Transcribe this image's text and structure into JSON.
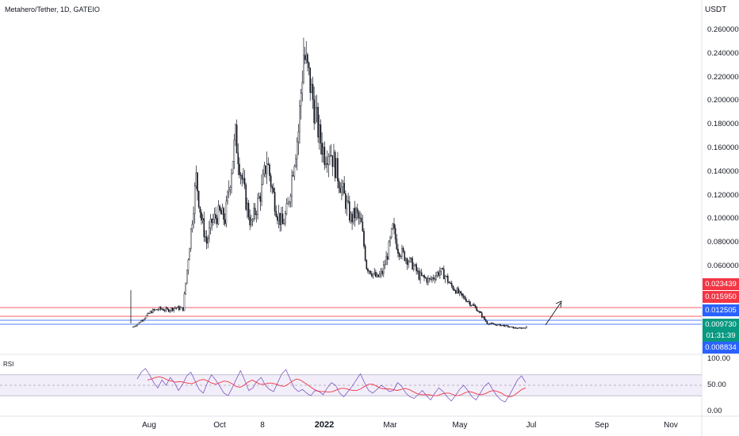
{
  "header": {
    "title": "Metahero/Tether, 1D, GATEIO",
    "currency": "USDT"
  },
  "colors": {
    "up": "#131722",
    "down": "#131722",
    "red_line": "#f23645",
    "blue_line": "#2962ff",
    "green_tag": "#089981",
    "rsi_line": "#7e57c2",
    "rsi_ma": "#f23645",
    "rsi_band": "#ede7f6"
  },
  "chart_data": {
    "type": "candlestick",
    "title": "Metahero/Tether, 1D, GATEIO",
    "y_unit": "USDT",
    "ylim": [
      0.0,
      0.268
    ],
    "y_ticks": [
      "0.260000",
      "0.240000",
      "0.220000",
      "0.200000",
      "0.180000",
      "0.160000",
      "0.140000",
      "0.120000",
      "0.100000",
      "0.080000",
      "0.060000"
    ],
    "x_ticks": [
      {
        "label": "Aug",
        "bold": false
      },
      {
        "label": "Oct",
        "bold": false
      },
      {
        "label": "8",
        "bold": false
      },
      {
        "label": "2022",
        "bold": true
      },
      {
        "label": "Mar",
        "bold": false
      },
      {
        "label": "May",
        "bold": false
      },
      {
        "label": "Jul",
        "bold": false
      },
      {
        "label": "Sep",
        "bold": false
      },
      {
        "label": "Nov",
        "bold": false
      }
    ],
    "series_close_points": [
      [
        0,
        0.0088
      ],
      [
        3,
        0.011
      ],
      [
        8,
        0.016
      ],
      [
        14,
        0.022
      ],
      [
        20,
        0.024
      ],
      [
        26,
        0.023
      ],
      [
        32,
        0.025
      ],
      [
        38,
        0.024
      ],
      [
        44,
        0.09
      ],
      [
        48,
        0.135
      ],
      [
        52,
        0.1
      ],
      [
        56,
        0.08
      ],
      [
        60,
        0.098
      ],
      [
        66,
        0.105
      ],
      [
        70,
        0.1
      ],
      [
        74,
        0.135
      ],
      [
        78,
        0.17
      ],
      [
        82,
        0.14
      ],
      [
        86,
        0.115
      ],
      [
        90,
        0.095
      ],
      [
        94,
        0.11
      ],
      [
        98,
        0.125
      ],
      [
        102,
        0.15
      ],
      [
        106,
        0.125
      ],
      [
        110,
        0.105
      ],
      [
        114,
        0.095
      ],
      [
        118,
        0.11
      ],
      [
        122,
        0.145
      ],
      [
        126,
        0.175
      ],
      [
        130,
        0.24
      ],
      [
        134,
        0.22
      ],
      [
        138,
        0.195
      ],
      [
        142,
        0.17
      ],
      [
        146,
        0.155
      ],
      [
        150,
        0.16
      ],
      [
        154,
        0.145
      ],
      [
        158,
        0.13
      ],
      [
        162,
        0.115
      ],
      [
        166,
        0.1
      ],
      [
        170,
        0.105
      ],
      [
        174,
        0.095
      ],
      [
        178,
        0.06
      ],
      [
        182,
        0.055
      ],
      [
        186,
        0.05
      ],
      [
        190,
        0.055
      ],
      [
        194,
        0.07
      ],
      [
        198,
        0.092
      ],
      [
        202,
        0.075
      ],
      [
        206,
        0.07
      ],
      [
        210,
        0.065
      ],
      [
        214,
        0.06
      ],
      [
        218,
        0.052
      ],
      [
        222,
        0.05
      ],
      [
        226,
        0.048
      ],
      [
        230,
        0.052
      ],
      [
        234,
        0.056
      ],
      [
        238,
        0.052
      ],
      [
        242,
        0.044
      ],
      [
        246,
        0.04
      ],
      [
        250,
        0.035
      ],
      [
        254,
        0.032
      ],
      [
        258,
        0.028
      ],
      [
        262,
        0.024
      ],
      [
        266,
        0.018
      ],
      [
        270,
        0.012
      ],
      [
        274,
        0.011
      ],
      [
        278,
        0.0105
      ],
      [
        282,
        0.01
      ],
      [
        286,
        0.009
      ],
      [
        290,
        0.008
      ],
      [
        294,
        0.0076
      ],
      [
        298,
        0.008
      ],
      [
        300,
        0.0085
      ]
    ],
    "horizontal_lines": [
      {
        "price": 0.023439,
        "label": "0.023439",
        "color": "#f23645"
      },
      {
        "price": 0.01595,
        "label": "0.015950",
        "color": "#f23645"
      },
      {
        "price": 0.012505,
        "label": "0.012505",
        "color": "#2962ff"
      },
      {
        "price": 0.008834,
        "label": "0.008834",
        "color": "#2962ff"
      }
    ],
    "last_price": {
      "label": "0.009730",
      "countdown": "01:31:39"
    },
    "rsi": {
      "label": "RSI",
      "ticks": [
        "100.00",
        "50.00",
        "0.00"
      ],
      "upper_band": 70,
      "lower_band": 30,
      "values": [
        62,
        75,
        82,
        70,
        55,
        45,
        60,
        50,
        65,
        55,
        40,
        52,
        68,
        75,
        58,
        42,
        35,
        55,
        70,
        60,
        48,
        35,
        30,
        45,
        62,
        78,
        60,
        40,
        45,
        58,
        65,
        50,
        42,
        38,
        55,
        72,
        80,
        62,
        45,
        38,
        42,
        35,
        30,
        40,
        38,
        32,
        45,
        55,
        50,
        35,
        28,
        38,
        48,
        60,
        72,
        55,
        40,
        35,
        42,
        50,
        45,
        38,
        40,
        55,
        48,
        35,
        28,
        25,
        32,
        40,
        30,
        22,
        35,
        45,
        38,
        28,
        20,
        30,
        42,
        50,
        40,
        28,
        22,
        35,
        48,
        55,
        42,
        30,
        22,
        18,
        30,
        45,
        60,
        68,
        55
      ],
      "ma_values": [
        60,
        62,
        65,
        66,
        64,
        60,
        58,
        56,
        57,
        56,
        54,
        53,
        56,
        60,
        61,
        58,
        54,
        52,
        55,
        58,
        57,
        53,
        48,
        46,
        50,
        56,
        60,
        56,
        52,
        52,
        54,
        54,
        52,
        49,
        48,
        52,
        58,
        62,
        60,
        55,
        50,
        44,
        40,
        38,
        38,
        37,
        38,
        41,
        44,
        44,
        42,
        40,
        40,
        43,
        48,
        52,
        52,
        48,
        44,
        43,
        43,
        42,
        40,
        42,
        44,
        42,
        38,
        34,
        32,
        32,
        32,
        30,
        30,
        33,
        35,
        35,
        32,
        30,
        32,
        36,
        38,
        36,
        33,
        32,
        34,
        38,
        40,
        38,
        35,
        30,
        28,
        30,
        36,
        42,
        45
      ]
    }
  }
}
